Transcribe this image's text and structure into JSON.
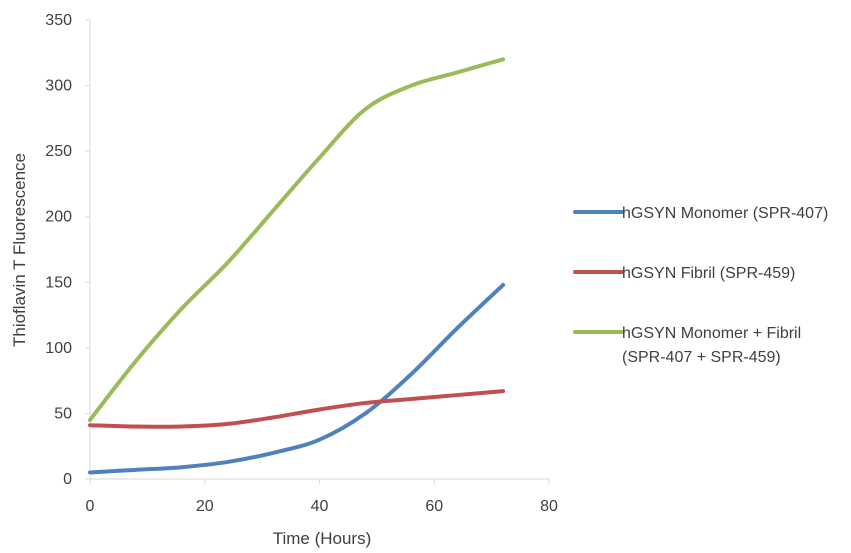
{
  "chart_data": {
    "type": "line",
    "title": "",
    "xlabel": "Time (Hours)",
    "ylabel": "Thioflavin T Fluorescence",
    "xlim": [
      0,
      80
    ],
    "ylim": [
      0,
      350
    ],
    "xticks": [
      0,
      20,
      40,
      60,
      80
    ],
    "yticks": [
      0,
      50,
      100,
      150,
      200,
      250,
      300,
      350
    ],
    "grid": false,
    "smooth": true,
    "legend_position": "right",
    "series": [
      {
        "name": "hGSYN Monomer (SPR-407)",
        "color": "#4f81bd",
        "x": [
          0,
          8,
          16,
          24,
          32,
          40,
          48,
          56,
          64,
          72
        ],
        "y": [
          5,
          7,
          9,
          13,
          20,
          30,
          50,
          80,
          115,
          148
        ]
      },
      {
        "name": "hGSYN Fibril (SPR-459)",
        "color": "#c0504d",
        "x": [
          0,
          8,
          16,
          24,
          32,
          40,
          48,
          56,
          64,
          72
        ],
        "y": [
          41,
          40,
          40,
          42,
          47,
          53,
          58,
          61,
          64,
          67
        ]
      },
      {
        "name": "hGSYN Monomer + Fibril (SPR-407 + SPR-459)",
        "name_lines": [
          "hGSYN Monomer + Fibril",
          "(SPR-407 + SPR-459)"
        ],
        "color": "#9bbb59",
        "x": [
          0,
          8,
          16,
          24,
          32,
          40,
          48,
          56,
          64,
          72
        ],
        "y": [
          45,
          90,
          130,
          165,
          205,
          245,
          282,
          300,
          310,
          320
        ]
      }
    ]
  }
}
